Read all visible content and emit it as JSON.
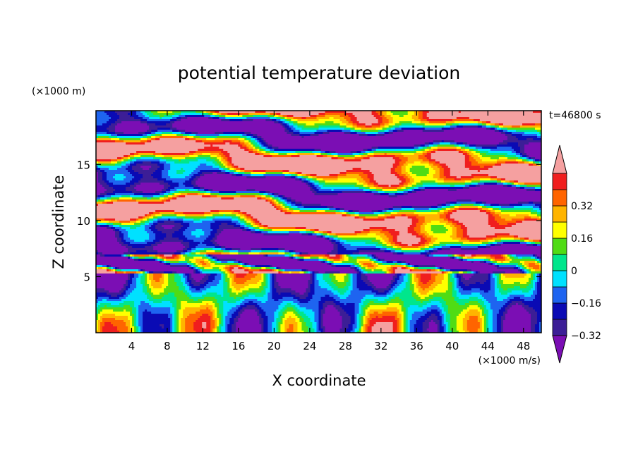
{
  "chart_data": {
    "type": "heatmap",
    "title": "potential temperature deviation",
    "xlabel": "X coordinate",
    "ylabel": "Z coordinate",
    "x_units": "(×1000 m/s)",
    "y_units": "(×1000 m)",
    "time_label": "t=46800 s",
    "xlim": [
      0,
      50
    ],
    "ylim": [
      0,
      19.8
    ],
    "x_ticks": [
      4,
      8,
      12,
      16,
      20,
      24,
      28,
      32,
      36,
      40,
      44,
      48
    ],
    "y_ticks": [
      5,
      10,
      15
    ],
    "colorbar": {
      "levels": [
        -0.4,
        -0.32,
        -0.24,
        -0.16,
        -0.08,
        0,
        0.08,
        0.16,
        0.24,
        0.32,
        0.4
      ],
      "tick_values": [
        0.32,
        0.16,
        0,
        -0.16,
        -0.32
      ],
      "tick_labels": [
        "0.32",
        "0.16",
        "0",
        "−0.16",
        "−0.32"
      ],
      "colors": [
        "#7b0eb4",
        "#3c1e96",
        "#0a0ab4",
        "#1e64f0",
        "#00e1ff",
        "#00e68c",
        "#50dc14",
        "#ffff00",
        "#ffb400",
        "#ff6400",
        "#f01e1e",
        "#f5a0a0"
      ],
      "extend": "both"
    }
  }
}
